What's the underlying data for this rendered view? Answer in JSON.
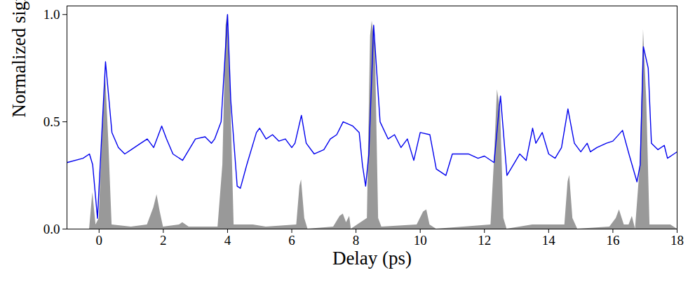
{
  "chart_data": {
    "type": "line",
    "x_label": "Delay (ps)",
    "y_label": "Normalized signal",
    "xlim": [
      -1,
      18
    ],
    "ylim": [
      0,
      1.04
    ],
    "xticks": [
      0,
      2,
      4,
      6,
      8,
      10,
      12,
      14,
      16,
      18
    ],
    "yticks": [
      0,
      0.5,
      1
    ],
    "grid": false,
    "series": [
      {
        "type": "area",
        "color": "#999999",
        "x": [
          -1,
          -0.3,
          -0.2,
          -0.1,
          0,
          0.1,
          0.2,
          0.3,
          0.4,
          1.0,
          1.5,
          1.7,
          1.8,
          1.9,
          2.0,
          2.5,
          2.6,
          2.8,
          3.7,
          3.85,
          3.95,
          4.0,
          4.1,
          4.2,
          4.8,
          5.2,
          6.15,
          6.25,
          6.3,
          6.4,
          6.5,
          7.3,
          7.5,
          7.6,
          7.7,
          7.8,
          7.85,
          8.35,
          8.45,
          8.5,
          8.6,
          8.7,
          8.8,
          9.9,
          10.1,
          10.2,
          10.3,
          10.5,
          12.2,
          12.3,
          12.4,
          12.5,
          12.6,
          12.7,
          13.5,
          14.5,
          14.6,
          14.65,
          14.75,
          14.9,
          15.9,
          16.1,
          16.2,
          16.35,
          16.5,
          16.6,
          16.7,
          16.85,
          16.95,
          17.05,
          17.15,
          17.8,
          18
        ],
        "values": [
          0,
          0,
          0.17,
          0.02,
          0.05,
          0.45,
          0.72,
          0.4,
          0.02,
          0.01,
          0.02,
          0.1,
          0.16,
          0.08,
          0.01,
          0.02,
          0.03,
          0.01,
          0.01,
          0.3,
          0.95,
          1.0,
          0.6,
          0.02,
          0.02,
          0.01,
          0.02,
          0.2,
          0.23,
          0.05,
          0,
          0.01,
          0.06,
          0.07,
          0.03,
          0.06,
          0,
          0.05,
          0.9,
          0.97,
          0.85,
          0.05,
          0.01,
          0.02,
          0.08,
          0.09,
          0.02,
          0,
          0.02,
          0.3,
          0.65,
          0.55,
          0.05,
          0,
          0.02,
          0.02,
          0.22,
          0.25,
          0.05,
          0,
          0.01,
          0.05,
          0.09,
          0.02,
          0.02,
          0.06,
          0,
          0.3,
          0.93,
          0.6,
          0.02,
          0.02,
          0
        ]
      },
      {
        "type": "line",
        "color": "#0000ee",
        "x": [
          -1,
          -0.5,
          -0.3,
          -0.2,
          -0.05,
          0.2,
          0.4,
          0.6,
          0.8,
          1.0,
          1.3,
          1.5,
          1.7,
          1.95,
          2.1,
          2.3,
          2.6,
          3.0,
          3.3,
          3.5,
          3.6,
          3.8,
          3.9,
          4.0,
          4.1,
          4.3,
          4.4,
          4.6,
          4.9,
          5.0,
          5.2,
          5.4,
          5.6,
          5.8,
          6.0,
          6.1,
          6.3,
          6.45,
          6.7,
          7.0,
          7.2,
          7.4,
          7.6,
          7.9,
          8.1,
          8.2,
          8.3,
          8.4,
          8.55,
          8.75,
          9.0,
          9.2,
          9.4,
          9.6,
          9.8,
          10.0,
          10.3,
          10.5,
          10.8,
          11.0,
          11.5,
          11.8,
          12.0,
          12.3,
          12.45,
          12.5,
          12.7,
          12.9,
          13.1,
          13.3,
          13.5,
          13.6,
          13.8,
          14.0,
          14.2,
          14.4,
          14.6,
          14.8,
          15.0,
          15.2,
          15.3,
          15.5,
          15.8,
          16.0,
          16.3,
          16.5,
          16.75,
          16.85,
          16.95,
          17.1,
          17.2,
          17.4,
          17.6,
          17.7,
          17.9,
          18.0
        ],
        "values": [
          0.31,
          0.33,
          0.35,
          0.3,
          0.05,
          0.78,
          0.45,
          0.38,
          0.35,
          0.37,
          0.4,
          0.42,
          0.38,
          0.48,
          0.42,
          0.35,
          0.32,
          0.42,
          0.43,
          0.4,
          0.42,
          0.5,
          0.75,
          1.0,
          0.6,
          0.2,
          0.19,
          0.3,
          0.45,
          0.47,
          0.42,
          0.44,
          0.41,
          0.42,
          0.38,
          0.4,
          0.53,
          0.4,
          0.35,
          0.37,
          0.42,
          0.44,
          0.5,
          0.48,
          0.45,
          0.3,
          0.2,
          0.35,
          0.95,
          0.5,
          0.42,
          0.44,
          0.38,
          0.42,
          0.32,
          0.45,
          0.44,
          0.28,
          0.25,
          0.35,
          0.35,
          0.33,
          0.34,
          0.31,
          0.55,
          0.62,
          0.25,
          0.3,
          0.35,
          0.32,
          0.47,
          0.4,
          0.45,
          0.35,
          0.33,
          0.38,
          0.56,
          0.4,
          0.36,
          0.4,
          0.36,
          0.38,
          0.4,
          0.41,
          0.46,
          0.35,
          0.22,
          0.3,
          0.85,
          0.75,
          0.4,
          0.37,
          0.39,
          0.33,
          0.35,
          0.36
        ]
      }
    ]
  }
}
